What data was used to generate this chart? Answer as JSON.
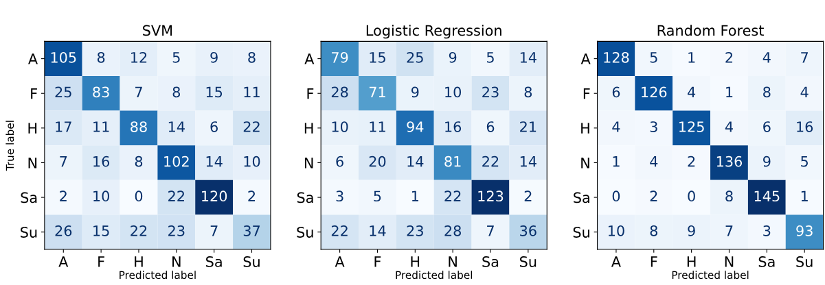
{
  "chart_data": [
    {
      "type": "heatmap",
      "title": "SVM",
      "xlabel": "Predicted label",
      "ylabel": "True label",
      "categories": [
        "A",
        "F",
        "H",
        "N",
        "Sa",
        "Su"
      ],
      "y_categories": [
        "A",
        "F",
        "H",
        "N",
        "Sa",
        "Su"
      ],
      "data_labels": true,
      "cells": [
        [
          105,
          8,
          12,
          5,
          9,
          8
        ],
        [
          25,
          83,
          7,
          8,
          15,
          11
        ],
        [
          17,
          11,
          88,
          14,
          6,
          22
        ],
        [
          7,
          16,
          8,
          102,
          14,
          10
        ],
        [
          2,
          10,
          0,
          22,
          120,
          2
        ],
        [
          26,
          15,
          22,
          23,
          7,
          37
        ]
      ]
    },
    {
      "type": "heatmap",
      "title": "Logistic Regression",
      "xlabel": "Predicted label",
      "categories": [
        "A",
        "F",
        "H",
        "N",
        "Sa",
        "Su"
      ],
      "y_categories": [
        "A",
        "F",
        "H",
        "N",
        "Sa",
        "Su"
      ],
      "data_labels": true,
      "cells": [
        [
          79,
          15,
          25,
          9,
          5,
          14
        ],
        [
          28,
          71,
          9,
          10,
          23,
          8
        ],
        [
          10,
          11,
          94,
          16,
          6,
          21
        ],
        [
          6,
          20,
          14,
          81,
          22,
          14
        ],
        [
          3,
          5,
          1,
          22,
          123,
          2
        ],
        [
          22,
          14,
          23,
          28,
          7,
          36
        ]
      ]
    },
    {
      "type": "heatmap",
      "title": "Random Forest",
      "xlabel": "Predicted label",
      "categories": [
        "A",
        "F",
        "H",
        "N",
        "Sa",
        "Su"
      ],
      "y_categories": [
        "A",
        "F",
        "H",
        "N",
        "Sa",
        "Su"
      ],
      "data_labels": true,
      "cells": [
        [
          128,
          5,
          1,
          2,
          4,
          7
        ],
        [
          6,
          126,
          4,
          1,
          8,
          4
        ],
        [
          4,
          3,
          125,
          4,
          6,
          16
        ],
        [
          1,
          4,
          2,
          136,
          9,
          5
        ],
        [
          0,
          2,
          0,
          8,
          145,
          1
        ],
        [
          10,
          8,
          9,
          7,
          3,
          93
        ]
      ]
    }
  ]
}
